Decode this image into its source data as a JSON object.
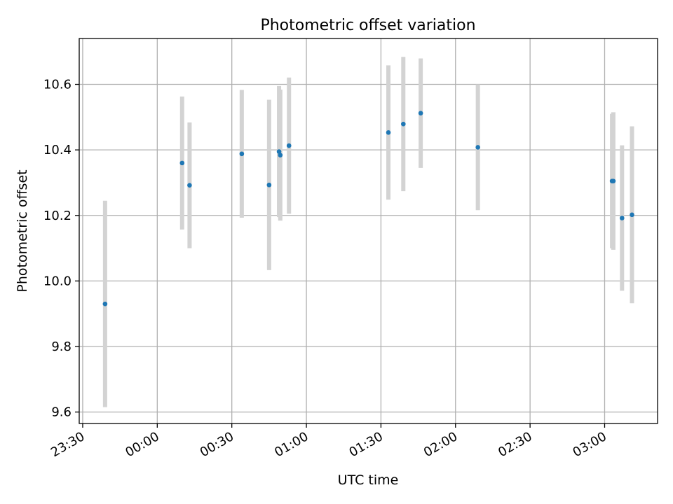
{
  "chart_data": {
    "type": "scatter",
    "title": "Photometric offset variation",
    "xlabel": "UTC time",
    "ylabel": "Photometric offset",
    "x_tick_labels": [
      "23:30",
      "00:00",
      "00:30",
      "01:00",
      "01:30",
      "02:00",
      "02:30",
      "03:00"
    ],
    "x_tick_minutes": [
      0,
      30,
      60,
      90,
      120,
      150,
      180,
      210
    ],
    "xlim_minutes": [
      -1.4,
      231.3
    ],
    "y_ticks": [
      9.6,
      9.8,
      10.0,
      10.2,
      10.4,
      10.6
    ],
    "y_tick_labels": [
      "9.6",
      "9.8",
      "10.0",
      "10.2",
      "10.4",
      "10.6"
    ],
    "ylim": [
      9.565,
      10.74
    ],
    "grid": true,
    "marker_color": "#1f77b4",
    "errorbar_color": "#d3d3d3",
    "points": [
      {
        "t": "23:39",
        "y": 9.93,
        "err": 0.315
      },
      {
        "t": "00:10",
        "y": 10.36,
        "err": 0.203
      },
      {
        "t": "00:13",
        "y": 10.292,
        "err": 0.192
      },
      {
        "t": "00:34",
        "y": 10.388,
        "err": 0.195
      },
      {
        "t": "00:45",
        "y": 10.293,
        "err": 0.26
      },
      {
        "t": "00:49",
        "y": 10.395,
        "err": 0.2
      },
      {
        "t": "00:49:30",
        "y": 10.384,
        "err": 0.2
      },
      {
        "t": "00:53",
        "y": 10.413,
        "err": 0.208
      },
      {
        "t": "01:33",
        "y": 10.453,
        "err": 0.205
      },
      {
        "t": "01:39",
        "y": 10.479,
        "err": 0.205
      },
      {
        "t": "01:46",
        "y": 10.512,
        "err": 0.167
      },
      {
        "t": "02:09",
        "y": 10.408,
        "err": 0.192
      },
      {
        "t": "03:03",
        "y": 10.305,
        "err": 0.205
      },
      {
        "t": "03:03:30",
        "y": 10.305,
        "err": 0.21
      },
      {
        "t": "03:07",
        "y": 10.192,
        "err": 0.222
      },
      {
        "t": "03:11",
        "y": 10.202,
        "err": 0.27
      }
    ]
  }
}
